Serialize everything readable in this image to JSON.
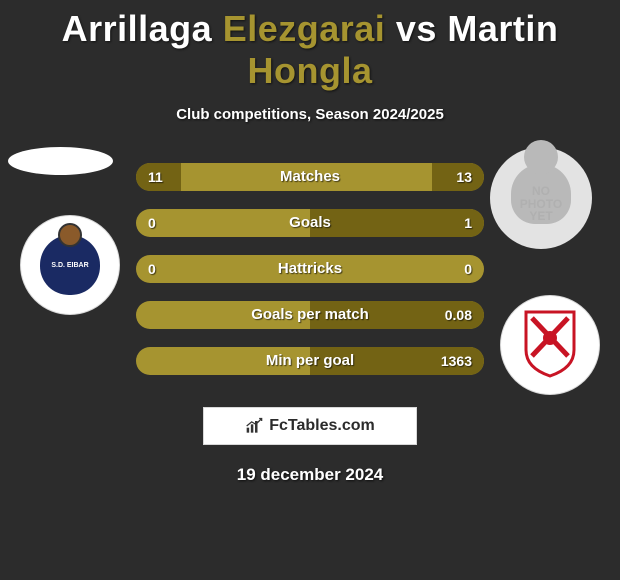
{
  "title": {
    "player1_first": "Arrillaga",
    "player1_last": "Elezgarai",
    "vs": "vs",
    "player2_first": "Martin",
    "player2_last": "Hongla"
  },
  "subtitle": "Club competitions, Season 2024/2025",
  "photo_right_placeholder": [
    "NO",
    "PHOTO",
    "YET"
  ],
  "club_left": {
    "name": "SD Eibar",
    "label_top": "S.D. EIBAR"
  },
  "club_right": {
    "name": "Granada CF"
  },
  "bars": [
    {
      "label": "Matches",
      "left": "11",
      "right": "13",
      "left_pct": 13,
      "right_pct": 15
    },
    {
      "label": "Goals",
      "left": "0",
      "right": "1",
      "left_pct": 0,
      "right_pct": 50
    },
    {
      "label": "Hattricks",
      "left": "0",
      "right": "0",
      "left_pct": 0,
      "right_pct": 0
    },
    {
      "label": "Goals per match",
      "left": "",
      "right": "0.08",
      "left_pct": 0,
      "right_pct": 50
    },
    {
      "label": "Min per goal",
      "left": "",
      "right": "1363",
      "left_pct": 0,
      "right_pct": 50
    }
  ],
  "colors": {
    "bar_base": "#a69430",
    "bar_fill": "#736314",
    "highlight": "#a69430",
    "bg": "#2c2c2c"
  },
  "brand": "FcTables.com",
  "date": "19 december 2024"
}
